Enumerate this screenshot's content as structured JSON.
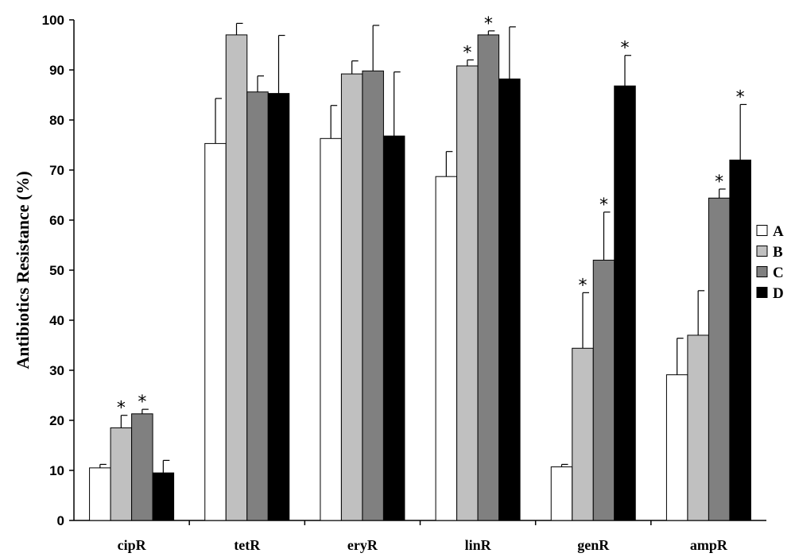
{
  "chart_data": {
    "type": "bar",
    "title": "",
    "xlabel": "",
    "ylabel": "Antibiotics Resistance (%)",
    "ylim": [
      0,
      100
    ],
    "yticks": [
      0,
      10,
      20,
      30,
      40,
      50,
      60,
      70,
      80,
      90,
      100
    ],
    "grid": false,
    "legend_position": "right",
    "categories": [
      "cipR",
      "tetR",
      "eryR",
      "linR",
      "genR",
      "ampR"
    ],
    "series": [
      {
        "name": "A",
        "color": "#ffffff",
        "values": [
          10.5,
          75.3,
          76.3,
          68.7,
          10.7,
          29.1
        ],
        "errors": [
          0.7,
          9.0,
          6.6,
          5.0,
          0.5,
          7.3
        ],
        "significant": [
          false,
          false,
          false,
          false,
          false,
          false
        ]
      },
      {
        "name": "B",
        "color": "#c0c0c0",
        "values": [
          18.5,
          97.0,
          89.2,
          90.8,
          34.4,
          37.0
        ],
        "errors": [
          2.5,
          2.3,
          2.6,
          1.2,
          11.1,
          8.9
        ],
        "significant": [
          true,
          false,
          false,
          true,
          true,
          false
        ]
      },
      {
        "name": "C",
        "color": "#808080",
        "values": [
          21.3,
          85.6,
          89.8,
          97.0,
          52.0,
          64.4
        ],
        "errors": [
          0.9,
          3.2,
          9.1,
          0.8,
          9.6,
          1.8
        ],
        "significant": [
          true,
          false,
          false,
          true,
          true,
          true
        ]
      },
      {
        "name": "D",
        "color": "#000000",
        "values": [
          9.5,
          85.3,
          76.8,
          88.2,
          86.8,
          72.0
        ],
        "errors": [
          2.5,
          11.6,
          12.8,
          10.4,
          6.1,
          11.1
        ],
        "significant": [
          false,
          false,
          false,
          false,
          true,
          true
        ]
      }
    ],
    "annotation_symbol": "*"
  }
}
